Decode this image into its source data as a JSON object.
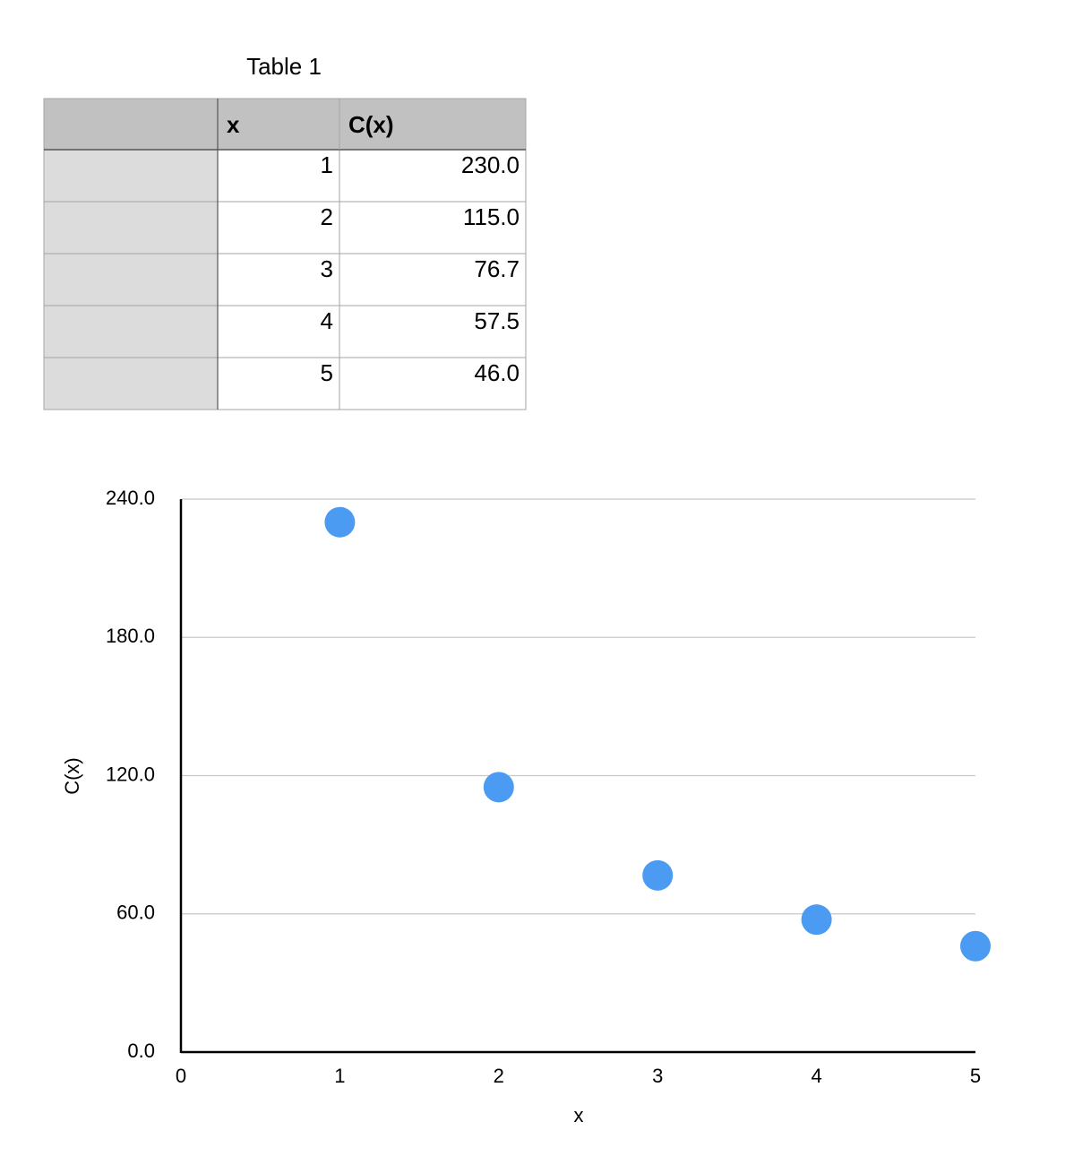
{
  "table": {
    "title": "Table 1",
    "header": [
      "x",
      "C(x)"
    ],
    "rows": [
      [
        "1",
        "230.0"
      ],
      [
        "2",
        "115.0"
      ],
      [
        "3",
        "76.7"
      ],
      [
        "4",
        "57.5"
      ],
      [
        "5",
        "46.0"
      ]
    ]
  },
  "chart_data": {
    "type": "scatter",
    "x_label": "x",
    "y_label": "C(x)",
    "x": [
      1,
      2,
      3,
      4,
      5
    ],
    "values": [
      230,
      115,
      76.7,
      57.5,
      46
    ],
    "color": "#4a9bf1",
    "xlim": [
      0,
      5
    ],
    "xticks": [
      0,
      1,
      2,
      3,
      4,
      5
    ],
    "ylim": [
      0,
      240
    ],
    "yticks": [
      {
        "value": 0,
        "label": "0.0"
      },
      {
        "value": 60,
        "label": "60.0"
      },
      {
        "value": 120,
        "label": "120.0"
      },
      {
        "value": 180,
        "label": "180.0"
      },
      {
        "value": 240,
        "label": "240.0"
      }
    ],
    "grid": true
  }
}
